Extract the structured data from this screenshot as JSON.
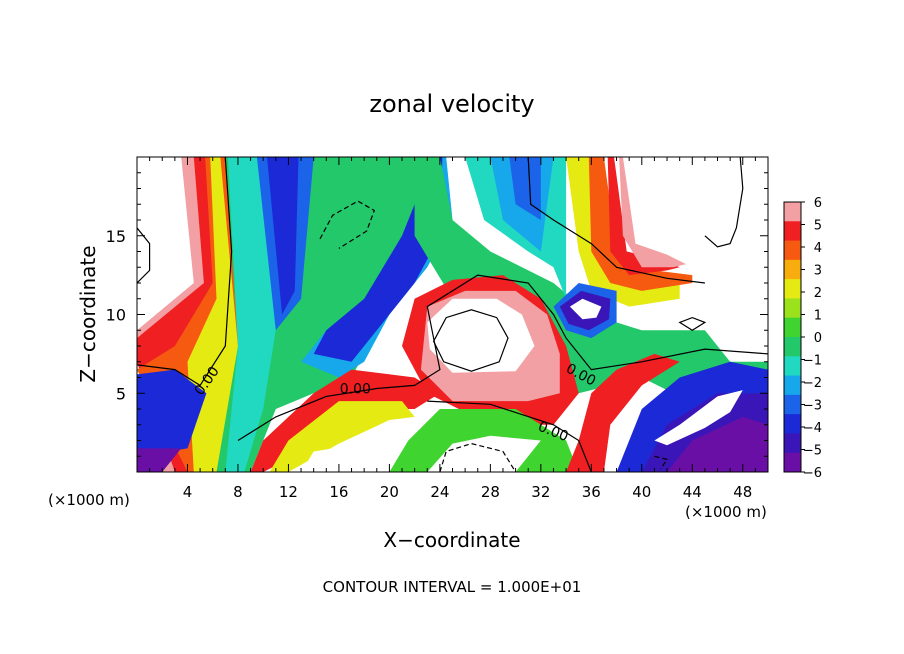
{
  "chart_data": {
    "type": "heatmap",
    "title": "zonal velocity",
    "xlabel": "X−coordinate",
    "ylabel": "Z−coordinate",
    "x_units_left": "(×1000 m)",
    "x_units_right": "(×1000 m)",
    "xlim": [
      0,
      50
    ],
    "ylim": [
      0,
      20
    ],
    "x_ticks": [
      4,
      8,
      12,
      16,
      20,
      24,
      28,
      32,
      36,
      40,
      44,
      48
    ],
    "x_tick_labels": [
      "4",
      "8",
      "12",
      "16",
      "20",
      "24",
      "28",
      "32",
      "36",
      "40",
      "44",
      "48"
    ],
    "y_ticks": [
      5,
      10,
      15
    ],
    "y_tick_labels": [
      "5",
      "10",
      "15"
    ],
    "colorbar": {
      "min": -6,
      "max": 6,
      "ticks": [
        6,
        5,
        4,
        3,
        2,
        1,
        0,
        -1,
        -2,
        -3,
        -4,
        -5,
        -6
      ],
      "tick_labels": [
        "6",
        "5",
        "4",
        "3",
        "2",
        "1",
        "0",
        "−1",
        "−2",
        "−3",
        "−4",
        "−5",
        "−6"
      ]
    },
    "contour_labels": [
      {
        "text": "0.00",
        "x": 5.5,
        "z": 5.8,
        "angle": -55
      },
      {
        "text": "0.00",
        "x": 17.3,
        "z": 5.3,
        "angle": 0
      },
      {
        "text": "0.00",
        "x": 35.2,
        "z": 6.2,
        "angle": 28
      },
      {
        "text": "0.00",
        "x": 33.0,
        "z": 2.6,
        "angle": 22
      }
    ],
    "annotation": "CONTOUR INTERVAL = 1.000E+01",
    "colors": {
      "n6": "#6a0fa6",
      "n5": "#3a16b8",
      "n4": "#1b2ad6",
      "n3": "#1b63e8",
      "n2": "#16a8ea",
      "n1": "#21d8c0",
      "n0": "#22c86a",
      "p0": "#3fd430",
      "p1": "#9be21c",
      "p2": "#e5ea12",
      "p3": "#f7ad0e",
      "p4": "#f55a10",
      "p5": "#ef1f22",
      "p6": "#f3a0a4"
    }
  }
}
